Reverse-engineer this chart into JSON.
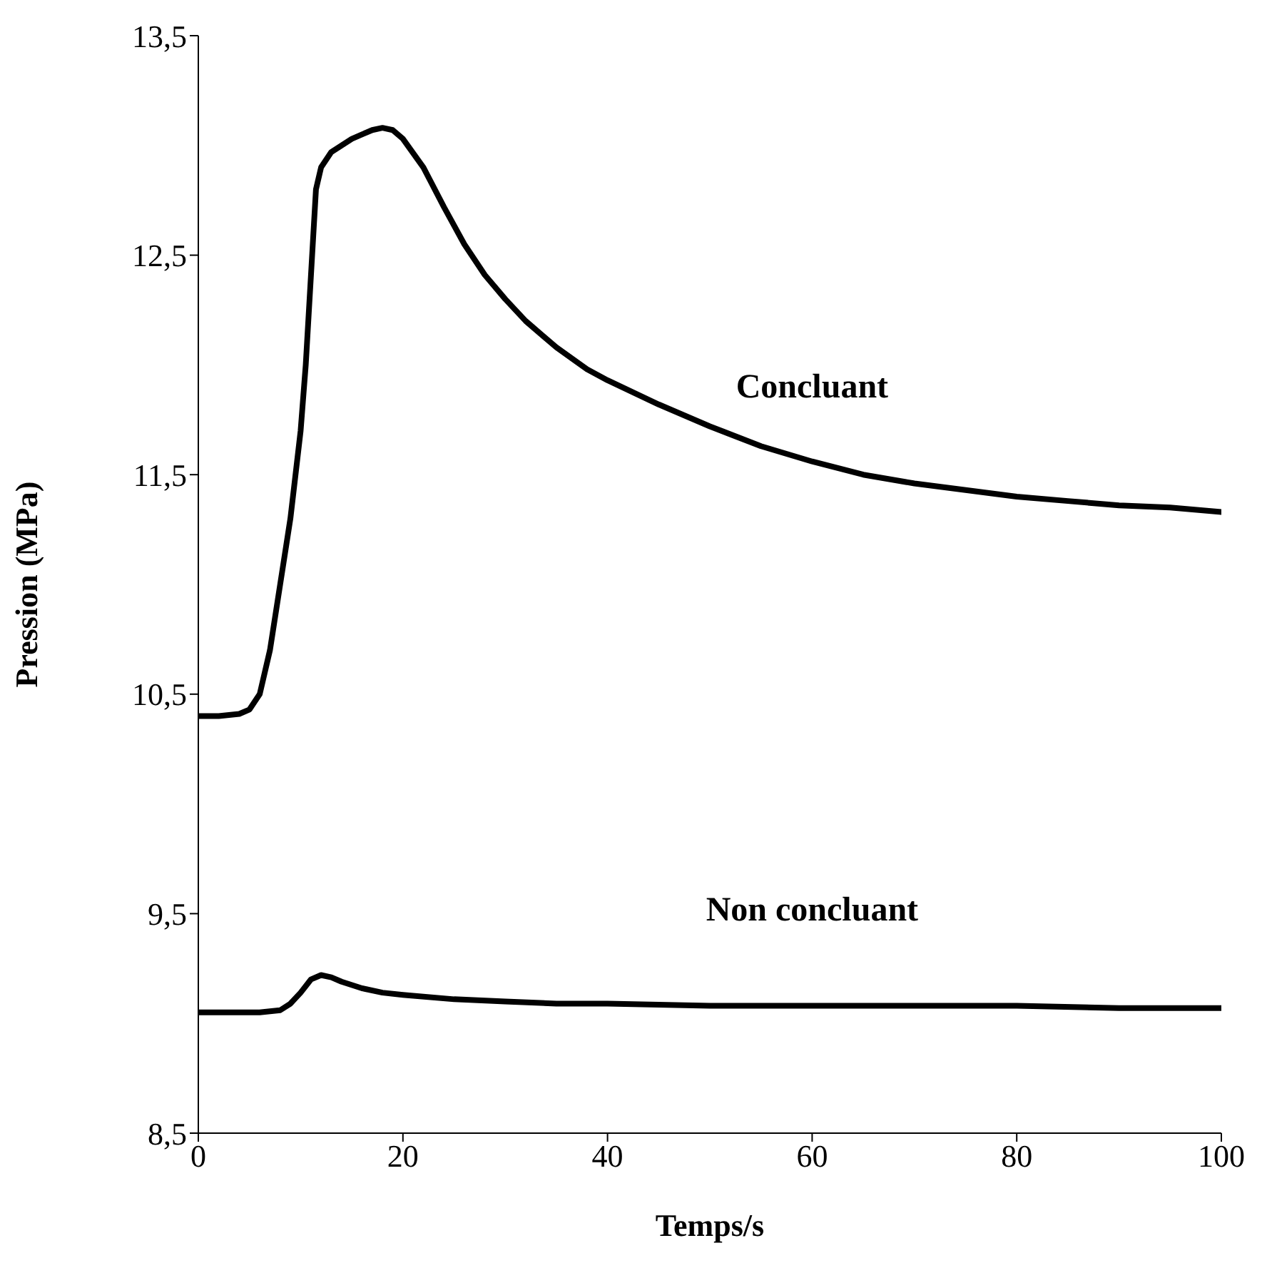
{
  "chart_data": {
    "type": "line",
    "xlabel": "Temps/s",
    "ylabel": "Pression (MPa)",
    "xlim": [
      0,
      100
    ],
    "xticks": [
      0,
      20,
      40,
      60,
      80,
      100
    ],
    "ylim": [
      8.5,
      13.5
    ],
    "yticks": [
      {
        "value": 8.5,
        "label": "8,5"
      },
      {
        "value": 9.5,
        "label": "9,5"
      },
      {
        "value": 10.5,
        "label": "10,5"
      },
      {
        "value": 11.5,
        "label": "11,5"
      },
      {
        "value": 12.5,
        "label": "12,5"
      },
      {
        "value": 13.5,
        "label": "13,5"
      }
    ],
    "grid": false,
    "legend": false,
    "marker": "none",
    "line_style": "solid",
    "series": [
      {
        "name": "Concluant",
        "color": "#000000",
        "x": [
          0,
          2,
          4,
          5,
          6,
          7,
          8,
          9,
          10,
          10.5,
          11,
          11.5,
          12,
          13,
          14,
          15,
          16,
          17,
          18,
          19,
          20,
          22,
          24,
          26,
          28,
          30,
          32,
          35,
          38,
          40,
          45,
          50,
          55,
          60,
          65,
          70,
          75,
          80,
          85,
          90,
          95,
          100
        ],
        "values": [
          10.4,
          10.4,
          10.41,
          10.43,
          10.5,
          10.7,
          11.0,
          11.3,
          11.7,
          12.0,
          12.4,
          12.8,
          12.9,
          12.97,
          13.0,
          13.03,
          13.05,
          13.07,
          13.08,
          13.07,
          13.03,
          12.9,
          12.72,
          12.55,
          12.41,
          12.3,
          12.2,
          12.08,
          11.98,
          11.93,
          11.82,
          11.72,
          11.63,
          11.56,
          11.5,
          11.46,
          11.43,
          11.4,
          11.38,
          11.36,
          11.35,
          11.33
        ]
      },
      {
        "name": "Non concluant",
        "color": "#000000",
        "x": [
          0,
          2,
          4,
          6,
          8,
          9,
          10,
          11,
          12,
          13,
          14,
          16,
          18,
          20,
          25,
          30,
          35,
          40,
          50,
          60,
          70,
          80,
          90,
          100
        ],
        "values": [
          9.05,
          9.05,
          9.05,
          9.05,
          9.06,
          9.09,
          9.14,
          9.2,
          9.22,
          9.21,
          9.19,
          9.16,
          9.14,
          9.13,
          9.11,
          9.1,
          9.09,
          9.09,
          9.08,
          9.08,
          9.08,
          9.08,
          9.07,
          9.07
        ]
      }
    ]
  }
}
